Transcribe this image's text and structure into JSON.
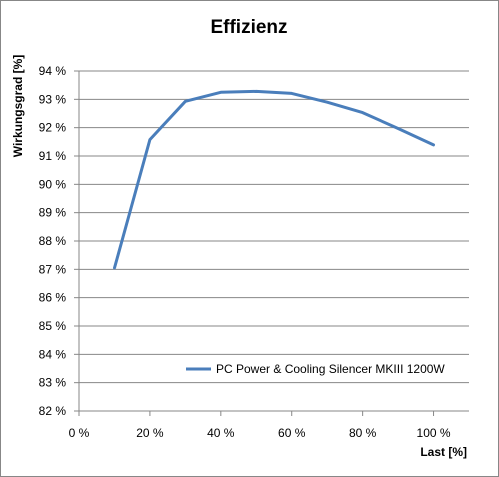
{
  "chart_data": {
    "type": "line",
    "title": "Effizienz",
    "xlabel": "Last [%]",
    "ylabel": "Wirkungsgrad [%]",
    "xlim": [
      0,
      110
    ],
    "ylim": [
      82,
      94
    ],
    "x_ticks": [
      0,
      20,
      40,
      60,
      80,
      100
    ],
    "x_tick_labels": [
      "0 %",
      "20 %",
      "40 %",
      "60 %",
      "80 %",
      "100 %"
    ],
    "y_ticks": [
      82,
      83,
      84,
      85,
      86,
      87,
      88,
      89,
      90,
      91,
      92,
      93,
      94
    ],
    "y_tick_labels": [
      "82 %",
      "83 %",
      "84 %",
      "85 %",
      "86 %",
      "87 %",
      "88 %",
      "89 %",
      "90 %",
      "91 %",
      "92 %",
      "93 %",
      "94 %"
    ],
    "grid": "horizontal",
    "legend_position": "bottom-right",
    "series": [
      {
        "name": "PC Power & Cooling Silencer MKIII 1200W",
        "color": "#4a7ebb",
        "x": [
          10,
          20,
          30,
          40,
          50,
          60,
          70,
          80,
          90,
          100
        ],
        "y": [
          87.05,
          91.58,
          92.93,
          93.25,
          93.28,
          93.21,
          92.9,
          92.53,
          91.97,
          91.39
        ]
      }
    ]
  }
}
